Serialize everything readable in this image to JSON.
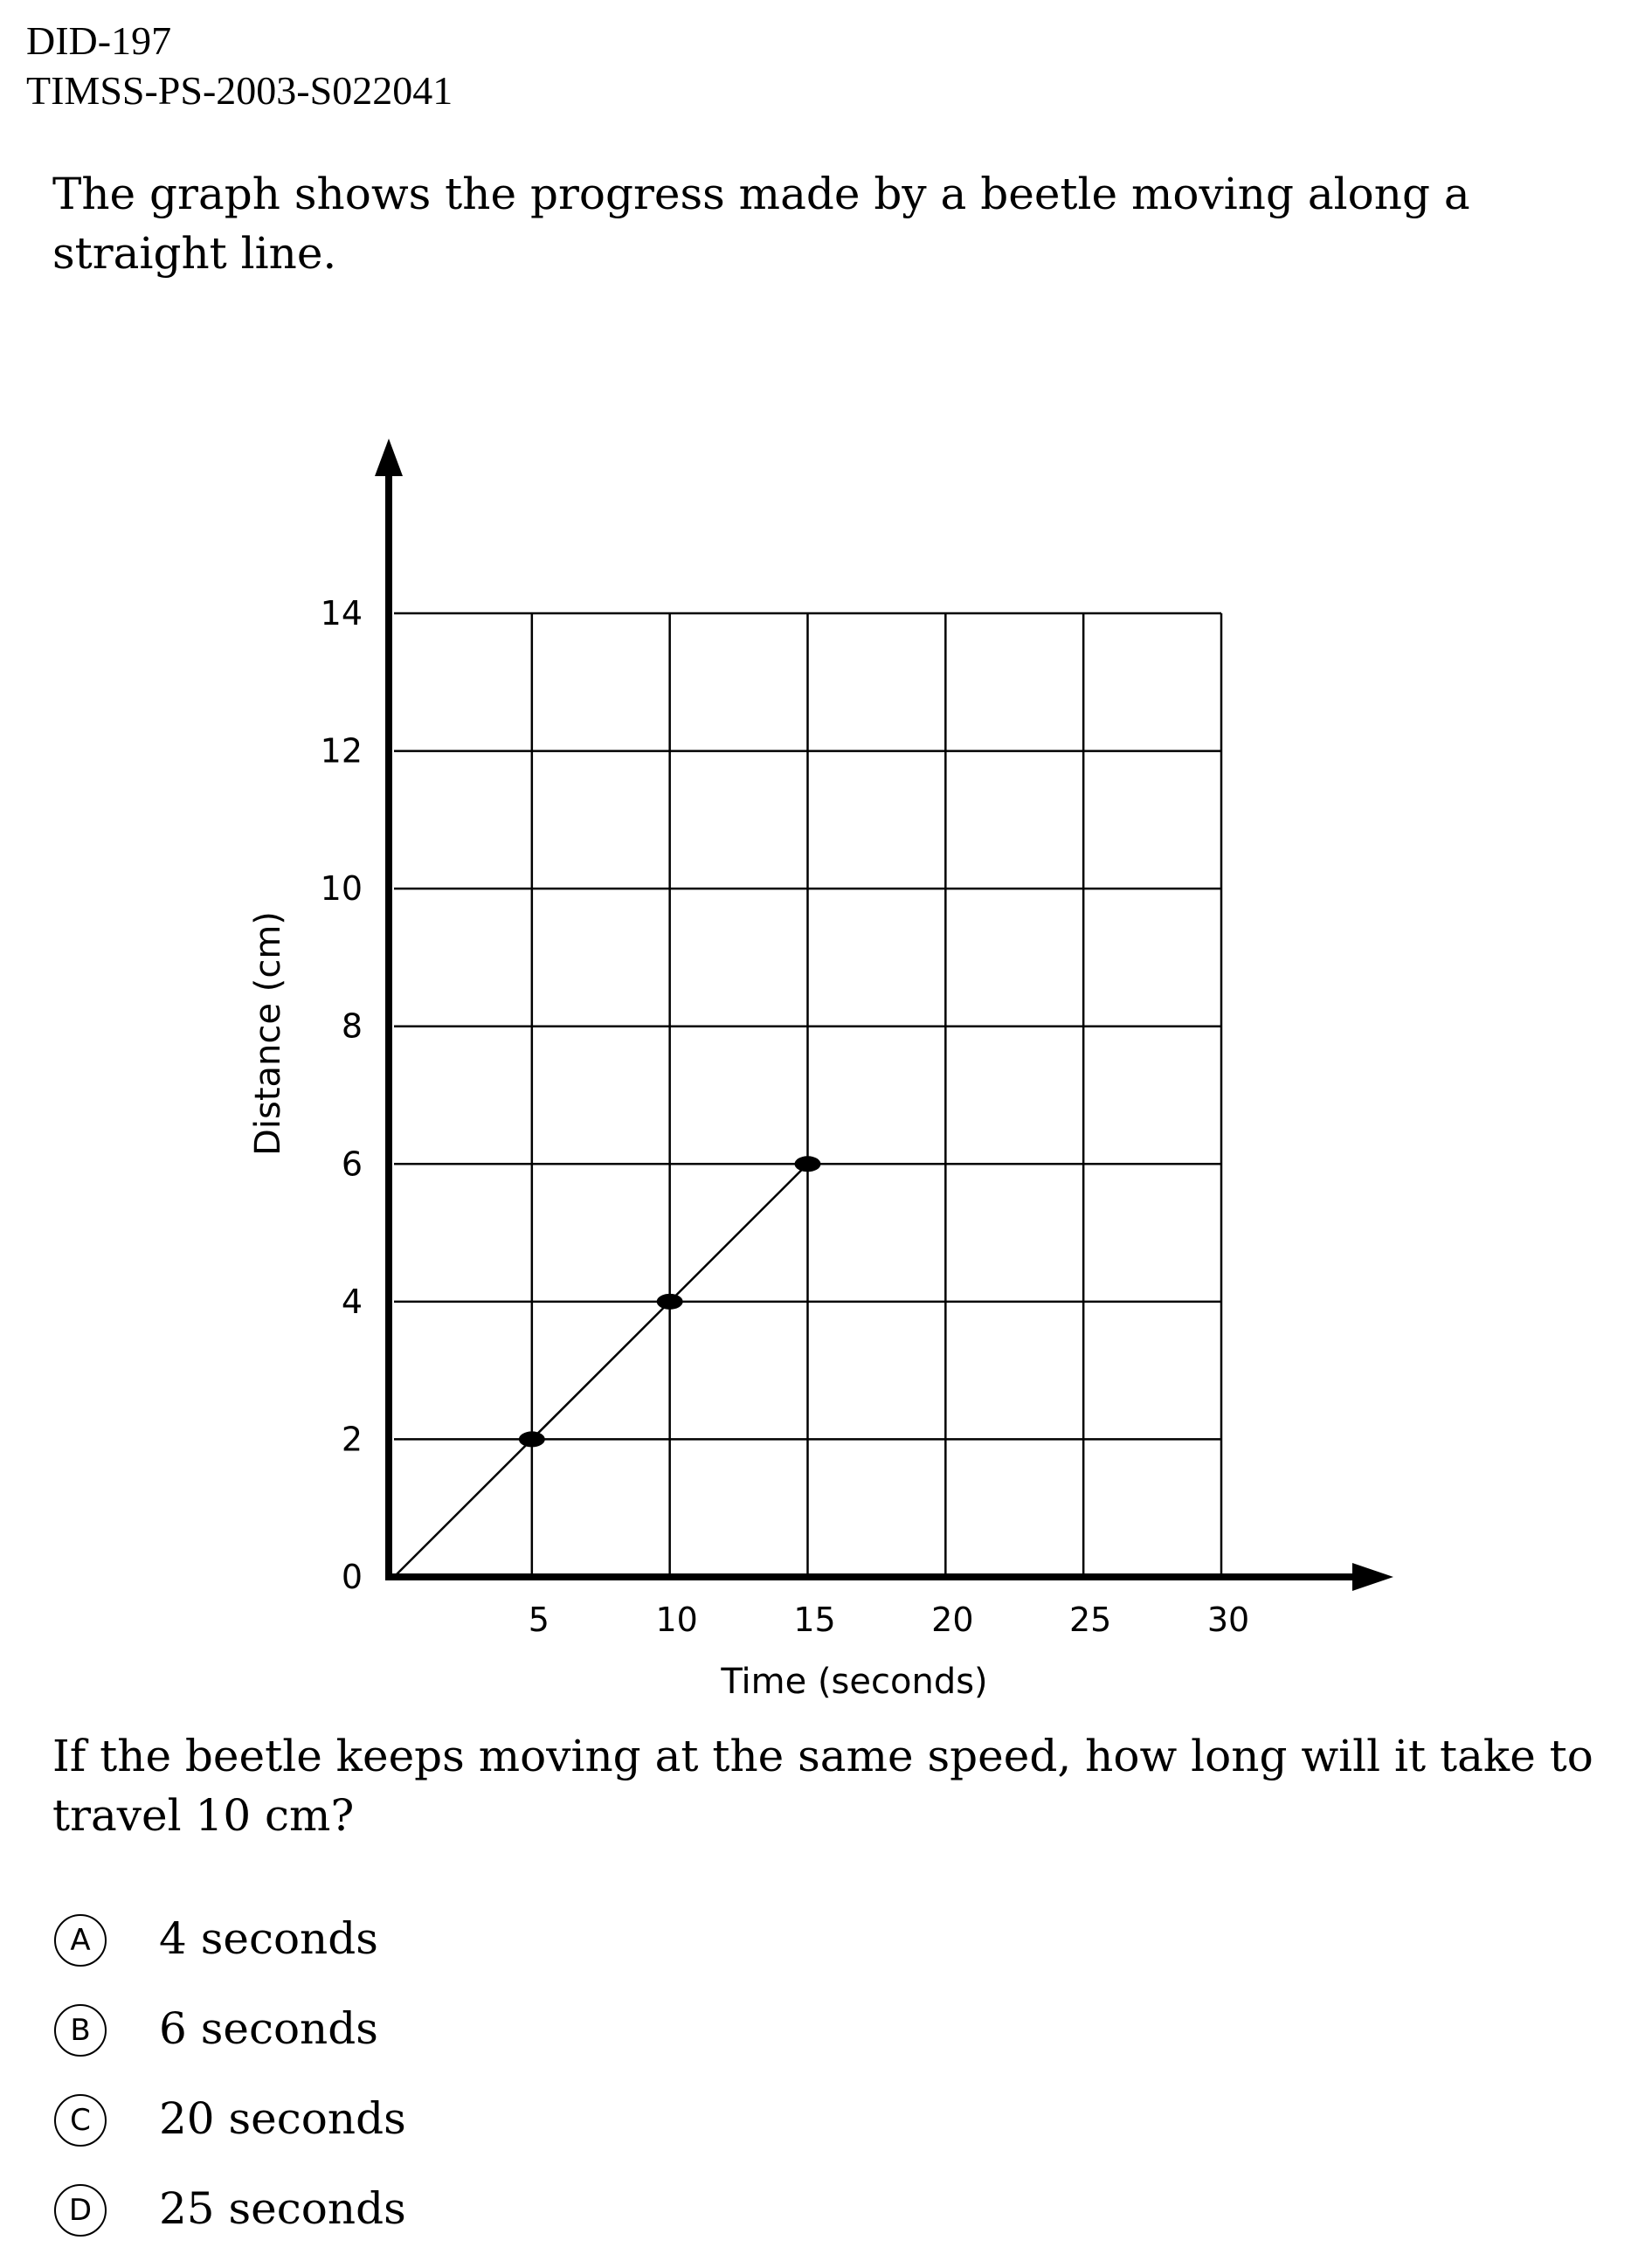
{
  "header": {
    "line1": "DID-197",
    "line2": "TIMSS-PS-2003-S022041"
  },
  "question": {
    "intro": "The graph shows the progress made by a beetle moving along a straight line.",
    "prompt": "If the beetle keeps moving at the same speed, how long will it take to travel 10 cm?"
  },
  "options": [
    {
      "letter": "A",
      "text": "4 seconds"
    },
    {
      "letter": "B",
      "text": "6 seconds"
    },
    {
      "letter": "C",
      "text": "20 seconds"
    },
    {
      "letter": "D",
      "text": "25 seconds"
    }
  ],
  "chart_data": {
    "type": "line",
    "xlabel": "Time (seconds)",
    "ylabel": "Distance (cm)",
    "xlim": [
      0,
      30
    ],
    "ylim": [
      0,
      14
    ],
    "x_ticks": [
      5,
      10,
      15,
      20,
      25,
      30
    ],
    "y_ticks": [
      0,
      2,
      4,
      6,
      8,
      10,
      12,
      14
    ],
    "grid": true,
    "series": [
      {
        "x": [
          0,
          5,
          10,
          15
        ],
        "y": [
          0,
          2,
          4,
          6
        ],
        "markers_at": [
          5,
          10,
          15
        ]
      }
    ]
  }
}
